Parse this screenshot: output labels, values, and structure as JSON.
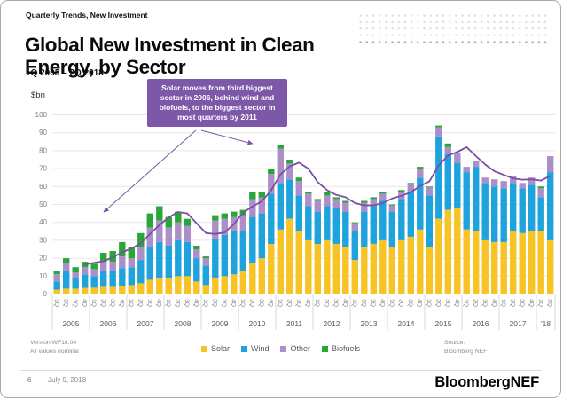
{
  "header": {
    "eyebrow": "Quarterly Trends, New Investment",
    "title": "Global New Investment in Clean Energy, by Sector",
    "subtitle": "1Q 2005 – 2Q 2018"
  },
  "annotation": {
    "text": "Solar moves from third biggest sector in 2006, behind wind and biofuels, to the biggest sector in most quarters by 2011"
  },
  "notes": {
    "version_line1": "Version WF18.04",
    "version_line2": "All values nominal",
    "source_line1": "Source:",
    "source_line2": "Bloomberg NEF"
  },
  "footer": {
    "page": "6",
    "date": "July 9, 2018",
    "logo": "BloombergNEF"
  },
  "colors": {
    "solar": "#F7C325",
    "wind": "#1FA3DD",
    "other": "#AC8FC9",
    "biofuels": "#28A737",
    "trend_line": "#7A4FA3",
    "annotation_bg": "#7D57A8"
  },
  "chart_data": {
    "type": "bar",
    "subtype": "stacked-bars-with-trend-line",
    "title": "Global New Investment in Clean Energy, by Sector",
    "xlabel": "",
    "ylabel": "$bn",
    "ylim": [
      0,
      100
    ],
    "y_ticks": [
      0,
      10,
      20,
      30,
      40,
      50,
      60,
      70,
      80,
      90,
      100
    ],
    "grid": true,
    "legend_position": "bottom",
    "years": [
      {
        "label": "2005",
        "quarters": 4
      },
      {
        "label": "2006",
        "quarters": 4
      },
      {
        "label": "2007",
        "quarters": 4
      },
      {
        "label": "2008",
        "quarters": 4
      },
      {
        "label": "2009",
        "quarters": 4
      },
      {
        "label": "2010",
        "quarters": 4
      },
      {
        "label": "2011",
        "quarters": 4
      },
      {
        "label": "2012",
        "quarters": 4
      },
      {
        "label": "2013",
        "quarters": 4
      },
      {
        "label": "2014",
        "quarters": 4
      },
      {
        "label": "2015",
        "quarters": 4
      },
      {
        "label": "2016",
        "quarters": 4
      },
      {
        "label": "2017",
        "quarters": 4
      },
      {
        "label": "'18",
        "quarters": 2
      }
    ],
    "series": [
      {
        "name": "Solar",
        "color": "#F7C325",
        "values": [
          2.5,
          3,
          3,
          3.5,
          3.5,
          4,
          4,
          4.5,
          5,
          6,
          8,
          9,
          9,
          10,
          10,
          7,
          5,
          9,
          10,
          11,
          13,
          17,
          20,
          28,
          36,
          42,
          35,
          30,
          28,
          30,
          28,
          26,
          19,
          26,
          28,
          30,
          26,
          30,
          32,
          36,
          26,
          42,
          47,
          48,
          36,
          35,
          30,
          29,
          29,
          35,
          34,
          35,
          35,
          30
        ]
      },
      {
        "name": "Wind",
        "color": "#1FA3DD",
        "values": [
          4.5,
          10,
          6,
          7.5,
          6.5,
          9,
          9,
          10,
          10,
          13,
          18,
          20,
          18,
          20,
          19,
          13,
          11,
          22,
          23,
          24,
          22,
          26,
          25,
          28,
          26,
          22,
          20,
          19,
          18,
          19,
          20,
          20,
          16,
          20,
          21,
          22,
          20,
          23,
          25,
          29,
          29,
          46,
          31,
          25,
          32,
          36,
          32,
          31,
          30,
          27,
          25,
          26,
          19,
          38
        ]
      },
      {
        "name": "Other",
        "color": "#AC8FC9",
        "values": [
          4,
          4.5,
          3,
          4,
          4,
          5,
          5,
          6.5,
          5,
          7,
          11,
          12,
          10,
          10,
          9,
          5,
          4,
          10,
          9,
          8,
          9,
          10,
          9,
          11,
          19,
          9,
          8,
          7,
          6,
          6,
          5,
          5,
          4.5,
          5,
          4,
          4,
          3.5,
          4,
          4,
          5,
          4.5,
          5,
          4,
          6,
          3,
          3,
          3,
          4,
          4,
          4,
          3,
          4,
          5,
          9
        ]
      },
      {
        "name": "Biofuels",
        "color": "#28A737",
        "values": [
          2,
          2.5,
          3,
          3,
          3,
          5,
          6,
          8,
          6,
          8,
          8,
          8,
          6,
          6,
          4,
          2,
          1,
          3,
          3,
          3,
          3,
          4,
          3,
          3,
          2,
          2,
          2,
          1,
          1,
          2,
          1,
          1,
          0.5,
          1,
          1,
          1,
          0.5,
          1,
          1,
          1,
          0.5,
          1,
          2,
          0,
          0,
          0,
          0,
          0,
          0,
          0,
          0,
          0,
          1,
          0
        ]
      }
    ],
    "trend_line": {
      "description": "4-quarter moving average of total investment",
      "color": "#7A4FA3",
      "values": [
        null,
        null,
        null,
        16.5,
        17.5,
        18.3,
        20.5,
        23.3,
        25.5,
        28.3,
        33.5,
        38.5,
        42.8,
        45.8,
        45,
        39.5,
        34,
        33.5,
        34.3,
        39,
        45.5,
        48.8,
        51.8,
        57.8,
        66.8,
        71.3,
        73.3,
        70,
        62.5,
        58,
        55.3,
        54,
        50.8,
        49.5,
        49.5,
        50.8,
        53.3,
        54.8,
        56.8,
        60.3,
        62.8,
        71.8,
        77.3,
        79.3,
        82,
        77,
        72.3,
        68.5,
        66.5,
        64.5,
        63.8,
        64,
        63.3,
        66
      ]
    }
  }
}
